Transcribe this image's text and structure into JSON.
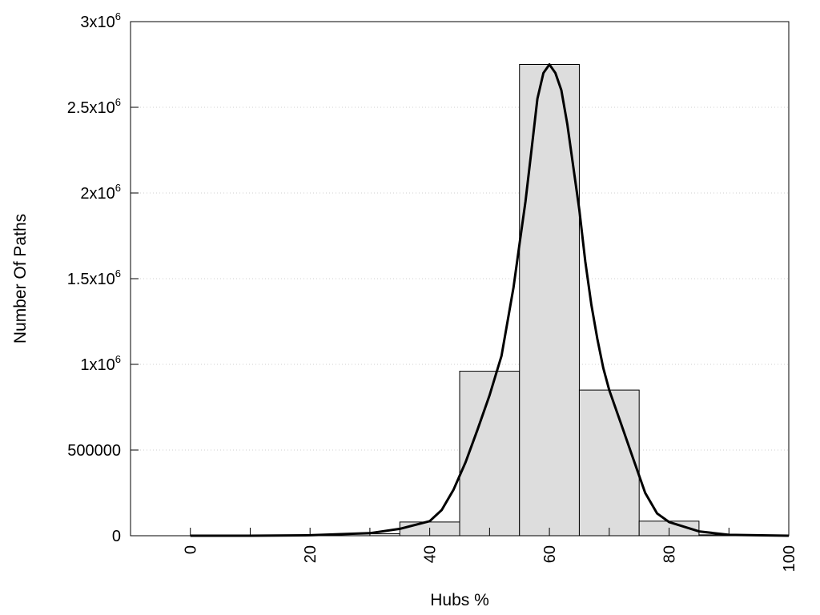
{
  "chart_data": {
    "type": "bar",
    "xlabel": "Hubs %",
    "ylabel": "Number Of Paths",
    "xlim": [
      -10,
      100
    ],
    "ylim": [
      0,
      3000000
    ],
    "grid": "horizontal dotted",
    "colors": {
      "bar_fill": "#dddddd",
      "bar_stroke": "#000000",
      "curve": "#000000",
      "grid": "#cfcfcf"
    },
    "x_ticks": [
      {
        "value": 0,
        "label": "0"
      },
      {
        "value": 20,
        "label": "20"
      },
      {
        "value": 40,
        "label": "40"
      },
      {
        "value": 60,
        "label": "60"
      },
      {
        "value": 80,
        "label": "80"
      },
      {
        "value": 100,
        "label": "100"
      }
    ],
    "y_ticks": [
      {
        "value": 0,
        "label": "0"
      },
      {
        "value": 500000,
        "label": "500000"
      },
      {
        "value": 1000000,
        "label": "1x10",
        "exp": "6"
      },
      {
        "value": 1500000,
        "label": "1.5x10",
        "exp": "6"
      },
      {
        "value": 2000000,
        "label": "2x10",
        "exp": "6"
      },
      {
        "value": 2500000,
        "label": "2.5x10",
        "exp": "6"
      },
      {
        "value": 3000000,
        "label": "3x10",
        "exp": "6"
      }
    ],
    "bins": [
      {
        "x0": -5,
        "x1": 5,
        "value": 0
      },
      {
        "x0": 5,
        "x1": 15,
        "value": 0
      },
      {
        "x0": 15,
        "x1": 25,
        "value": 2000
      },
      {
        "x0": 25,
        "x1": 35,
        "value": 12000
      },
      {
        "x0": 35,
        "x1": 45,
        "value": 80000
      },
      {
        "x0": 45,
        "x1": 55,
        "value": 960000
      },
      {
        "x0": 55,
        "x1": 65,
        "value": 2750000
      },
      {
        "x0": 65,
        "x1": 75,
        "value": 850000
      },
      {
        "x0": 75,
        "x1": 85,
        "value": 85000
      },
      {
        "x0": 85,
        "x1": 95,
        "value": 5000
      },
      {
        "x0": 95,
        "x1": 105,
        "value": 0
      }
    ],
    "curve": [
      [
        0,
        0
      ],
      [
        10,
        0
      ],
      [
        20,
        3000
      ],
      [
        30,
        15000
      ],
      [
        35,
        40000
      ],
      [
        40,
        85000
      ],
      [
        42,
        150000
      ],
      [
        44,
        270000
      ],
      [
        46,
        430000
      ],
      [
        48,
        620000
      ],
      [
        50,
        820000
      ],
      [
        52,
        1050000
      ],
      [
        54,
        1450000
      ],
      [
        55,
        1700000
      ],
      [
        56,
        1950000
      ],
      [
        57,
        2250000
      ],
      [
        58,
        2550000
      ],
      [
        59,
        2700000
      ],
      [
        60,
        2750000
      ],
      [
        61,
        2700000
      ],
      [
        62,
        2600000
      ],
      [
        63,
        2400000
      ],
      [
        64,
        2150000
      ],
      [
        65,
        1900000
      ],
      [
        66,
        1600000
      ],
      [
        67,
        1350000
      ],
      [
        68,
        1150000
      ],
      [
        69,
        980000
      ],
      [
        70,
        850000
      ],
      [
        72,
        650000
      ],
      [
        74,
        450000
      ],
      [
        76,
        250000
      ],
      [
        78,
        130000
      ],
      [
        80,
        80000
      ],
      [
        85,
        25000
      ],
      [
        90,
        5000
      ],
      [
        100,
        0
      ]
    ]
  }
}
